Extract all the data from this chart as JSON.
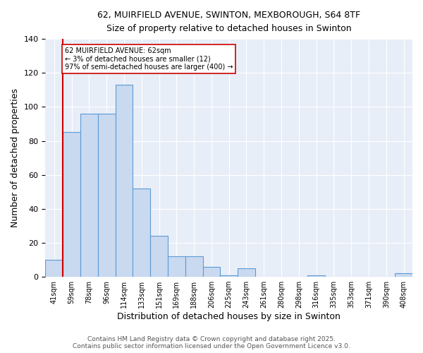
{
  "title1": "62, MUIRFIELD AVENUE, SWINTON, MEXBOROUGH, S64 8TF",
  "title2": "Size of property relative to detached houses in Swinton",
  "xlabel": "Distribution of detached houses by size in Swinton",
  "ylabel": "Number of detached properties",
  "bar_labels": [
    "41sqm",
    "59sqm",
    "78sqm",
    "96sqm",
    "114sqm",
    "133sqm",
    "151sqm",
    "169sqm",
    "188sqm",
    "206sqm",
    "225sqm",
    "243sqm",
    "261sqm",
    "280sqm",
    "298sqm",
    "316sqm",
    "335sqm",
    "353sqm",
    "371sqm",
    "390sqm",
    "408sqm"
  ],
  "bar_values": [
    10,
    85,
    96,
    96,
    113,
    52,
    24,
    12,
    12,
    6,
    1,
    5,
    0,
    0,
    0,
    1,
    0,
    0,
    0,
    0,
    2
  ],
  "bar_color": "#c9d9f0",
  "bar_edge_color": "#5b9bd5",
  "vline_x_bar_index": 1,
  "vline_color": "#cc0000",
  "annotation_text": "62 MUIRFIELD AVENUE: 62sqm\n← 3% of detached houses are smaller (12)\n97% of semi-detached houses are larger (400) →",
  "annotation_box_color": "#ffffff",
  "annotation_box_edge": "#cc0000",
  "ylim": [
    0,
    140
  ],
  "yticks": [
    0,
    20,
    40,
    60,
    80,
    100,
    120,
    140
  ],
  "footer_text": "Contains HM Land Registry data © Crown copyright and database right 2025.\nContains public sector information licensed under the Open Government Licence v3.0.",
  "background_color": "#e8eef8"
}
